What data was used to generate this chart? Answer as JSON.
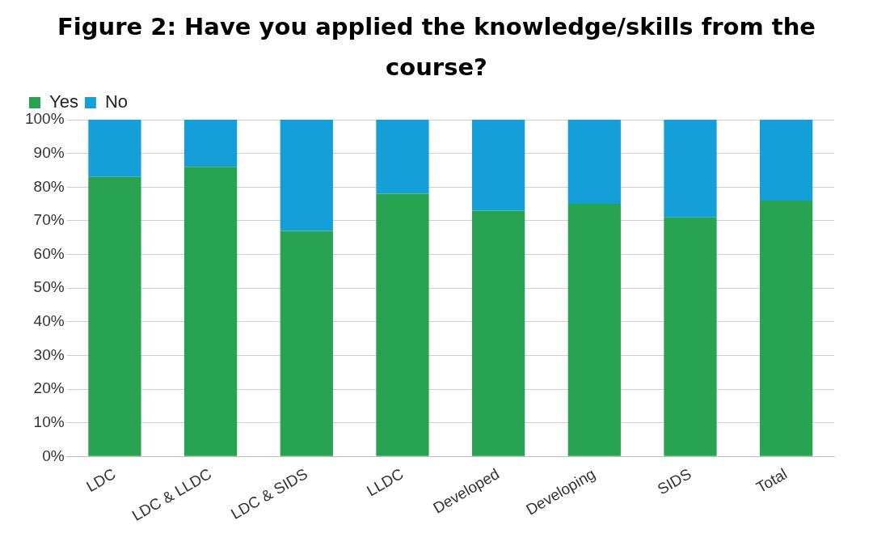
{
  "chart_data": {
    "type": "bar",
    "title": "Figure 2: Have you applied the knowledge/skills from the course?",
    "categories": [
      "LDC",
      "LDC & LLDC",
      "LDC & SIDS",
      "LLDC",
      "Developed",
      "Developing",
      "SIDS",
      "Total"
    ],
    "series": [
      {
        "name": "Yes",
        "color": "#27a352",
        "values": [
          83,
          86,
          67,
          78,
          73,
          75,
          71,
          76
        ]
      },
      {
        "name": "No",
        "color": "#149fd9",
        "values": [
          17,
          14,
          33,
          22,
          27,
          25,
          29,
          24
        ]
      }
    ],
    "stacked": true,
    "ylim": [
      0,
      100
    ],
    "yticks": [
      {
        "value": 0,
        "label": "0%"
      },
      {
        "value": 10,
        "label": "10%"
      },
      {
        "value": 20,
        "label": "20%"
      },
      {
        "value": 30,
        "label": "30%"
      },
      {
        "value": 40,
        "label": "40%"
      },
      {
        "value": 50,
        "label": "50%"
      },
      {
        "value": 60,
        "label": "60%"
      },
      {
        "value": 70,
        "label": "70%"
      },
      {
        "value": 80,
        "label": "80%"
      },
      {
        "value": 90,
        "label": "90%"
      },
      {
        "value": 100,
        "label": "100%"
      }
    ],
    "grid": "y",
    "legend": "top left"
  }
}
